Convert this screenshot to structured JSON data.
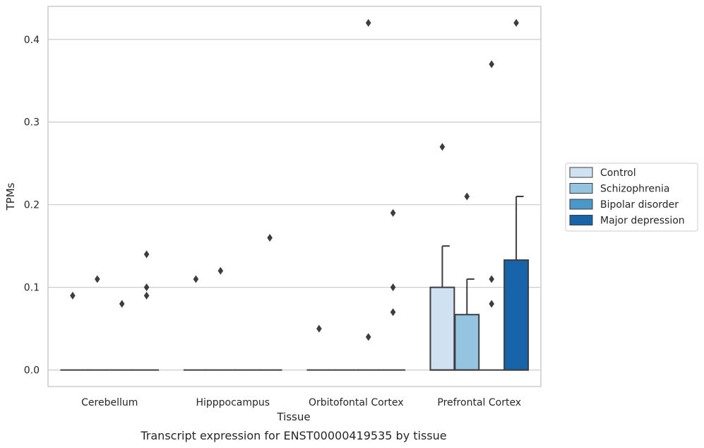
{
  "chart_data": {
    "type": "box",
    "title": "",
    "caption": "Transcript expression for ENST00000419535 by tissue",
    "xlabel": "Tissue",
    "ylabel": "TPMs",
    "ylim": [
      -0.02,
      0.44
    ],
    "yticks": [
      0.0,
      0.1,
      0.2,
      0.3,
      0.4
    ],
    "ytick_labels": [
      "0.0",
      "0.1",
      "0.2",
      "0.3",
      "0.4"
    ],
    "grid": "horizontal",
    "legend_placement": "right",
    "categories": [
      "Cerebellum",
      "Hipppocampus",
      "Orbitofontal Cortex",
      "Prefrontal Cortex"
    ],
    "series": [
      {
        "name": "Control",
        "color": "#d0e1f2",
        "boxes": [
          {
            "q1": 0,
            "median": 0,
            "q3": 0,
            "whisker_low": 0,
            "whisker_high": 0,
            "outliers": [
              0.09
            ]
          },
          {
            "q1": 0,
            "median": 0,
            "q3": 0,
            "whisker_low": 0,
            "whisker_high": 0,
            "outliers": [
              0.11
            ]
          },
          {
            "q1": 0,
            "median": 0,
            "q3": 0,
            "whisker_low": 0,
            "whisker_high": 0,
            "outliers": [
              0.05
            ]
          },
          {
            "q1": 0,
            "median": 0,
            "q3": 0.1,
            "whisker_low": 0,
            "whisker_high": 0.15,
            "outliers": [
              0.27
            ]
          }
        ]
      },
      {
        "name": "Schizophrenia",
        "color": "#94c4df",
        "boxes": [
          {
            "q1": 0,
            "median": 0,
            "q3": 0,
            "whisker_low": 0,
            "whisker_high": 0,
            "outliers": [
              0.11
            ]
          },
          {
            "q1": 0,
            "median": 0,
            "q3": 0,
            "whisker_low": 0,
            "whisker_high": 0,
            "outliers": [
              0.12
            ]
          },
          {
            "q1": 0,
            "median": 0,
            "q3": 0,
            "whisker_low": 0,
            "whisker_high": 0,
            "outliers": []
          },
          {
            "q1": 0,
            "median": 0,
            "q3": 0.067,
            "whisker_low": 0,
            "whisker_high": 0.11,
            "outliers": [
              0.21
            ]
          }
        ]
      },
      {
        "name": "Bipolar disorder",
        "color": "#4a98c9",
        "boxes": [
          {
            "q1": 0,
            "median": 0,
            "q3": 0,
            "whisker_low": 0,
            "whisker_high": 0,
            "outliers": [
              0.08
            ]
          },
          {
            "q1": 0,
            "median": 0,
            "q3": 0,
            "whisker_low": 0,
            "whisker_high": 0,
            "outliers": []
          },
          {
            "q1": 0,
            "median": 0,
            "q3": 0,
            "whisker_low": 0,
            "whisker_high": 0,
            "outliers": [
              0.04,
              0.42
            ]
          },
          {
            "q1": 0,
            "median": 0,
            "q3": 0,
            "whisker_low": 0,
            "whisker_high": 0,
            "outliers": [
              0.08,
              0.11,
              0.37
            ]
          }
        ]
      },
      {
        "name": "Major depression",
        "color": "#1764ab",
        "boxes": [
          {
            "q1": 0,
            "median": 0,
            "q3": 0,
            "whisker_low": 0,
            "whisker_high": 0,
            "outliers": [
              0.09,
              0.1,
              0.14
            ]
          },
          {
            "q1": 0,
            "median": 0,
            "q3": 0,
            "whisker_low": 0,
            "whisker_high": 0,
            "outliers": [
              0.16
            ]
          },
          {
            "q1": 0,
            "median": 0,
            "q3": 0,
            "whisker_low": 0,
            "whisker_high": 0,
            "outliers": [
              0.07,
              0.1,
              0.19
            ]
          },
          {
            "q1": 0,
            "median": 0,
            "q3": 0.133,
            "whisker_low": 0,
            "whisker_high": 0.21,
            "outliers": [
              0.42
            ]
          }
        ]
      }
    ]
  }
}
